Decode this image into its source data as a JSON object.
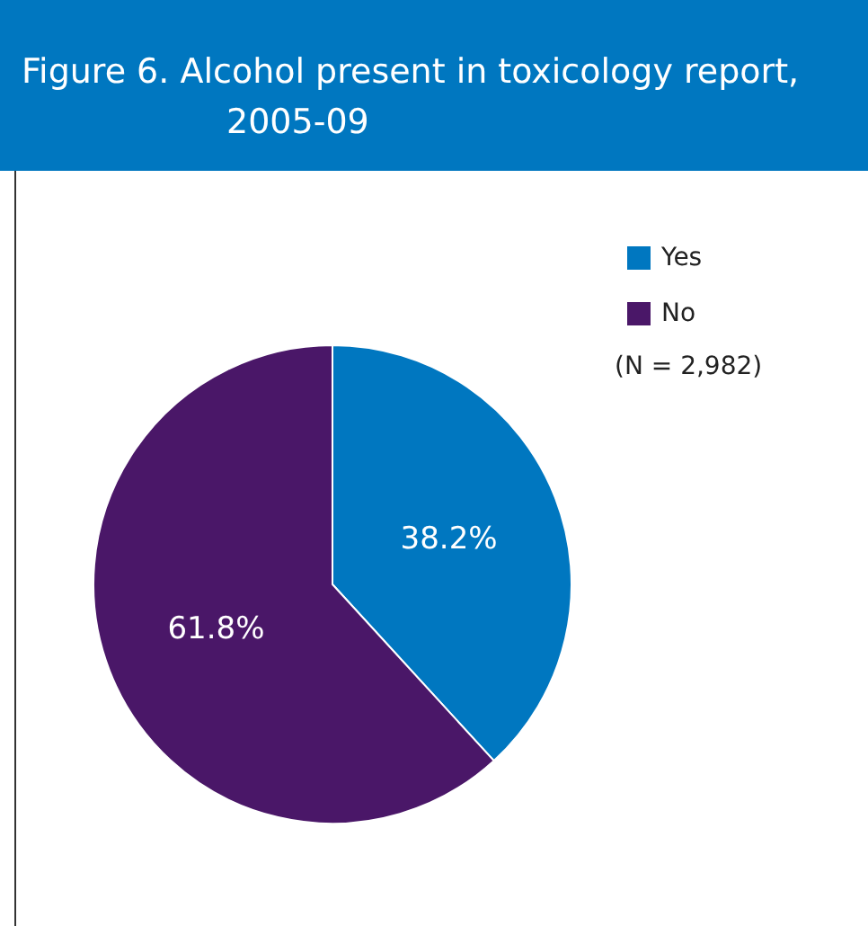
{
  "chart_data": {
    "type": "pie",
    "title": "Figure 6. Alcohol present in toxicology report, 2005-09",
    "categories": [
      "Yes",
      "No"
    ],
    "values": [
      38.2,
      61.8
    ],
    "colors": [
      "#0077c0",
      "#4a1768"
    ],
    "value_labels": [
      "38.2%",
      "61.8%"
    ],
    "legend": "top right",
    "annotations": [
      "(N = 2,982)"
    ]
  }
}
